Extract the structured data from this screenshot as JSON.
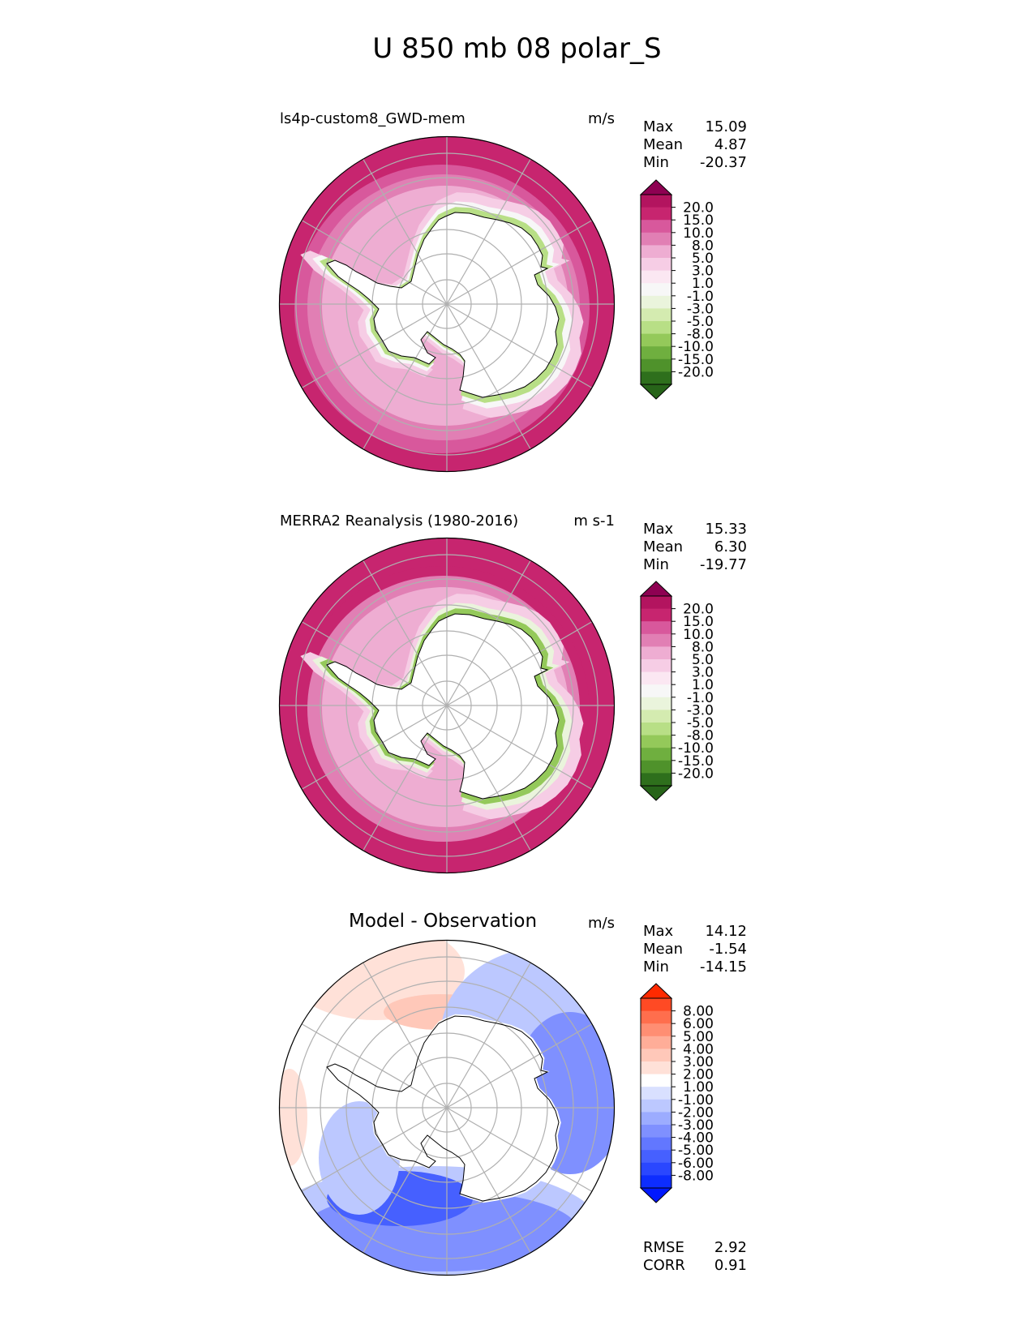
{
  "figure_title": "U 850 mb 08 polar_S",
  "colors": {
    "coast": "#000000",
    "grid": "#b0b0b0",
    "land_fill": "#ffffff"
  },
  "chart_data": [
    {
      "type": "heatmap",
      "panel": "test",
      "title": "ls4p-custom8_GWD-mem",
      "units": "m/s",
      "stats": [
        {
          "label": "Max",
          "value": "15.09"
        },
        {
          "label": "Mean",
          "value": "4.87"
        },
        {
          "label": "Min",
          "value": "-20.37"
        }
      ],
      "projection": "south polar stereographic",
      "colorbar": {
        "tick_labels": [
          "20.0",
          "15.0",
          "10.0",
          "8.0",
          "5.0",
          "3.0",
          "1.0",
          "-1.0",
          "-3.0",
          "-5.0",
          "-8.0",
          "-10.0",
          "-15.0",
          "-20.0"
        ],
        "colors_top_to_bottom": [
          "#8e0152",
          "#b3145f",
          "#c7256f",
          "#d8589c",
          "#e17fb4",
          "#eeadd2",
          "#f6cde5",
          "#fbe7f2",
          "#f7f7f7",
          "#eaf4dc",
          "#d4ebb0",
          "#b8df86",
          "#94c95a",
          "#6faf3f",
          "#4f922b",
          "#2e6f1c",
          "#276419"
        ],
        "extend": "both"
      },
      "field": {
        "outer_band_value": 12,
        "mid_band_value": 6,
        "near_coast_value": 2,
        "coastal_jet_value": -8,
        "continent_value": 0
      }
    },
    {
      "type": "heatmap",
      "panel": "reference",
      "title": "MERRA2 Reanalysis (1980-2016)",
      "units": "m s-1",
      "stats": [
        {
          "label": "Max",
          "value": "15.33"
        },
        {
          "label": "Mean",
          "value": "6.30"
        },
        {
          "label": "Min",
          "value": "-19.77"
        }
      ],
      "projection": "south polar stereographic",
      "colorbar": {
        "tick_labels": [
          "20.0",
          "15.0",
          "10.0",
          "8.0",
          "5.0",
          "3.0",
          "1.0",
          "-1.0",
          "-3.0",
          "-5.0",
          "-8.0",
          "-10.0",
          "-15.0",
          "-20.0"
        ],
        "colors_top_to_bottom": [
          "#8e0152",
          "#b3145f",
          "#c7256f",
          "#d8589c",
          "#e17fb4",
          "#eeadd2",
          "#f6cde5",
          "#fbe7f2",
          "#f7f7f7",
          "#eaf4dc",
          "#d4ebb0",
          "#b8df86",
          "#94c95a",
          "#6faf3f",
          "#4f922b",
          "#2e6f1c",
          "#276419"
        ],
        "extend": "both"
      },
      "field": {
        "outer_band_value": 13,
        "mid_band_value": 8,
        "near_coast_value": 3,
        "coastal_jet_value": -12,
        "continent_value": 0
      }
    },
    {
      "type": "heatmap",
      "panel": "difference",
      "title": "Model - Observation",
      "units": "m/s",
      "stats": [
        {
          "label": "Max",
          "value": "14.12"
        },
        {
          "label": "Mean",
          "value": "-1.54"
        },
        {
          "label": "Min",
          "value": "-14.15"
        }
      ],
      "metrics": [
        {
          "label": "RMSE",
          "value": "2.92"
        },
        {
          "label": "CORR",
          "value": "0.91"
        }
      ],
      "projection": "south polar stereographic",
      "colorbar": {
        "tick_labels": [
          "8.00",
          "6.00",
          "5.00",
          "4.00",
          "3.00",
          "2.00",
          "1.00",
          "-1.00",
          "-2.00",
          "-3.00",
          "-4.00",
          "-5.00",
          "-6.00",
          "-8.00"
        ],
        "colors_top_to_bottom": [
          "#ff2a00",
          "#ff4a24",
          "#ff6e4d",
          "#ff8e73",
          "#ffad98",
          "#ffc8b9",
          "#ffe1d8",
          "#ffffff",
          "#d9e0ff",
          "#bcc8ff",
          "#9cacff",
          "#7f90ff",
          "#6277ff",
          "#4660ff",
          "#2a47ff",
          "#0d2dff",
          "#0018ff"
        ],
        "extend": "both"
      },
      "field": {
        "pacific_sector_value": 2,
        "atlantic_indian_sector_value": -4,
        "southern_band_value": -6,
        "continent_value": 0
      }
    }
  ]
}
